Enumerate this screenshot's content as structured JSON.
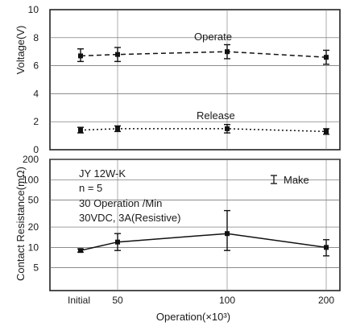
{
  "chart_data": [
    {
      "type": "line",
      "panel": "voltage",
      "ylabel": "Voltage(V)",
      "ylim": [
        0,
        10
      ],
      "yticks": [
        "0",
        "2",
        "4",
        "6",
        "8",
        "10"
      ],
      "x": [
        0,
        50,
        100,
        200
      ],
      "series": [
        {
          "name": "Operate",
          "line_style": "dashed",
          "values": [
            6.7,
            6.8,
            7.0,
            6.6
          ],
          "err_low": [
            6.3,
            6.3,
            6.5,
            6.1
          ],
          "err_high": [
            7.2,
            7.3,
            7.5,
            7.1
          ]
        },
        {
          "name": "Release",
          "line_style": "dotted",
          "values": [
            1.4,
            1.5,
            1.5,
            1.3
          ],
          "err_low": [
            1.2,
            1.3,
            1.2,
            1.1
          ],
          "err_high": [
            1.6,
            1.7,
            1.8,
            1.5
          ]
        }
      ]
    },
    {
      "type": "line",
      "panel": "contact-resistance",
      "ylabel": "Contact Resistance(mΩ)",
      "yscale": "log",
      "ylim": [
        2.3,
        200
      ],
      "yticks": [
        "5",
        "10",
        "20",
        "50",
        "100",
        "200"
      ],
      "xlabel": "Operation(×10³)",
      "xticks": [
        "Initial",
        "50",
        "100",
        "200"
      ],
      "x": [
        0,
        50,
        100,
        200
      ],
      "legend": "Make",
      "annotations": [
        "JY 12W-K",
        "n = 5",
        "30 Operation /Min",
        "30VDC, 3A(Resistive)"
      ],
      "series": [
        {
          "name": "Make",
          "line_style": "solid",
          "values": [
            9,
            12,
            16,
            10
          ],
          "err_low": [
            8.5,
            9,
            9,
            7.5
          ],
          "err_high": [
            9.5,
            16,
            35,
            13
          ]
        }
      ]
    }
  ]
}
